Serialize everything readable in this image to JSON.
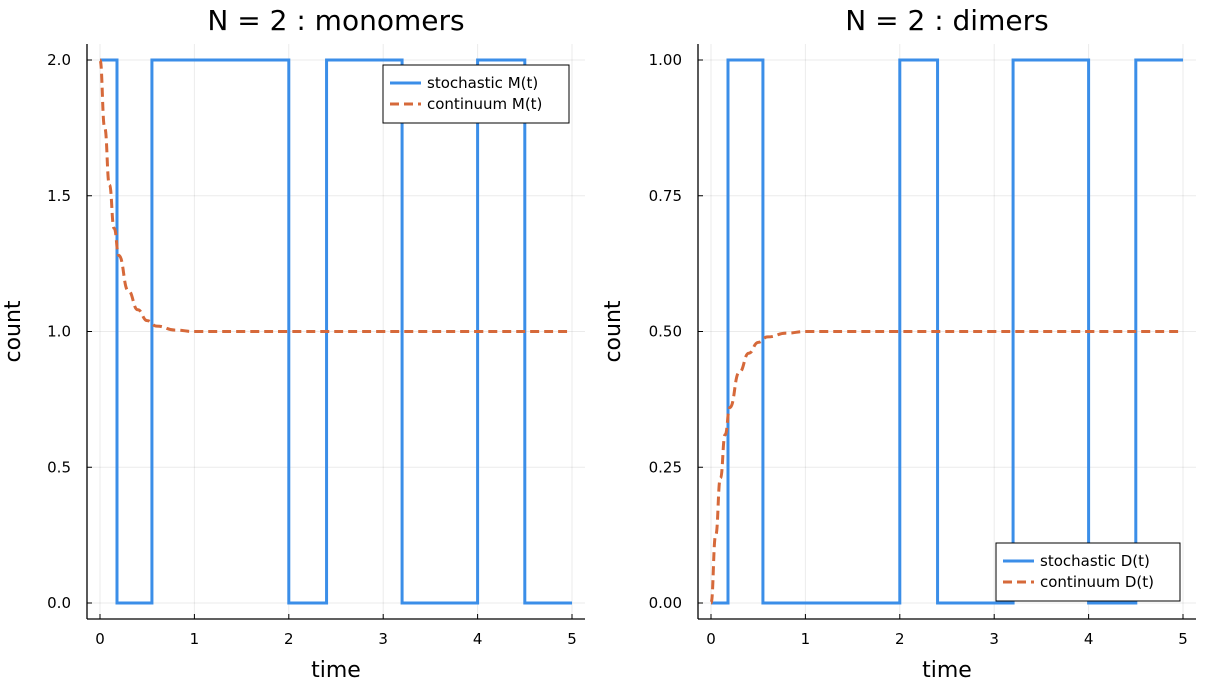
{
  "figure": {
    "background": "#ffffff",
    "colors": {
      "stochastic": "#3b8ee8",
      "continuum": "#d6693a"
    }
  },
  "chart_data": [
    {
      "type": "line",
      "title": "N = 2 : monomers",
      "xlabel": "time",
      "ylabel": "count",
      "xlim": [
        0,
        5
      ],
      "ylim": [
        0,
        2
      ],
      "xticks": [
        0,
        1,
        2,
        3,
        4,
        5
      ],
      "xtick_labels": [
        "0",
        "1",
        "2",
        "3",
        "4",
        "5"
      ],
      "yticks": [
        0,
        0.5,
        1.0,
        1.5,
        2.0
      ],
      "ytick_labels": [
        "0.0",
        "0.5",
        "1.0",
        "1.5",
        "2.0"
      ],
      "grid": true,
      "legend_position": "top-right",
      "series": [
        {
          "name": "stochastic M(t)",
          "style": "step",
          "color": "#3b8ee8",
          "x": [
            0,
            0.18,
            0.18,
            0.55,
            0.55,
            2.0,
            2.0,
            2.4,
            2.4,
            3.2,
            3.2,
            4.0,
            4.0,
            4.5,
            4.5,
            5.0
          ],
          "y": [
            2,
            2,
            0,
            0,
            2,
            2,
            0,
            0,
            2,
            2,
            0,
            0,
            2,
            2,
            0,
            0
          ]
        },
        {
          "name": "continuum M(t)",
          "style": "dashed",
          "color": "#d6693a",
          "x": [
            0,
            0.05,
            0.1,
            0.15,
            0.2,
            0.3,
            0.4,
            0.5,
            0.6,
            0.8,
            1.0,
            1.5,
            2.0,
            3.0,
            4.0,
            5.0
          ],
          "y": [
            2.0,
            1.75,
            1.54,
            1.38,
            1.28,
            1.15,
            1.08,
            1.04,
            1.02,
            1.005,
            1.0,
            1.0,
            1.0,
            1.0,
            1.0,
            1.0
          ]
        }
      ]
    },
    {
      "type": "line",
      "title": "N = 2 : dimers",
      "xlabel": "time",
      "ylabel": "count",
      "xlim": [
        0,
        5
      ],
      "ylim": [
        0,
        1
      ],
      "xticks": [
        0,
        1,
        2,
        3,
        4,
        5
      ],
      "xtick_labels": [
        "0",
        "1",
        "2",
        "3",
        "4",
        "5"
      ],
      "yticks": [
        0,
        0.25,
        0.5,
        0.75,
        1.0
      ],
      "ytick_labels": [
        "0.00",
        "0.25",
        "0.50",
        "0.75",
        "1.00"
      ],
      "grid": true,
      "legend_position": "bottom-right",
      "series": [
        {
          "name": "stochastic D(t)",
          "style": "step",
          "color": "#3b8ee8",
          "x": [
            0,
            0.18,
            0.18,
            0.55,
            0.55,
            2.0,
            2.0,
            2.4,
            2.4,
            3.2,
            3.2,
            4.0,
            4.0,
            4.5,
            4.5,
            5.0
          ],
          "y": [
            0,
            0,
            1,
            1,
            0,
            0,
            1,
            1,
            0,
            0,
            1,
            1,
            0,
            0,
            1,
            1
          ]
        },
        {
          "name": "continuum D(t)",
          "style": "dashed",
          "color": "#d6693a",
          "x": [
            0,
            0.05,
            0.1,
            0.15,
            0.2,
            0.3,
            0.4,
            0.5,
            0.6,
            0.8,
            1.0,
            1.5,
            2.0,
            3.0,
            4.0,
            5.0
          ],
          "y": [
            0.0,
            0.125,
            0.23,
            0.31,
            0.36,
            0.425,
            0.46,
            0.48,
            0.49,
            0.497,
            0.5,
            0.5,
            0.5,
            0.5,
            0.5,
            0.5
          ]
        }
      ]
    }
  ]
}
